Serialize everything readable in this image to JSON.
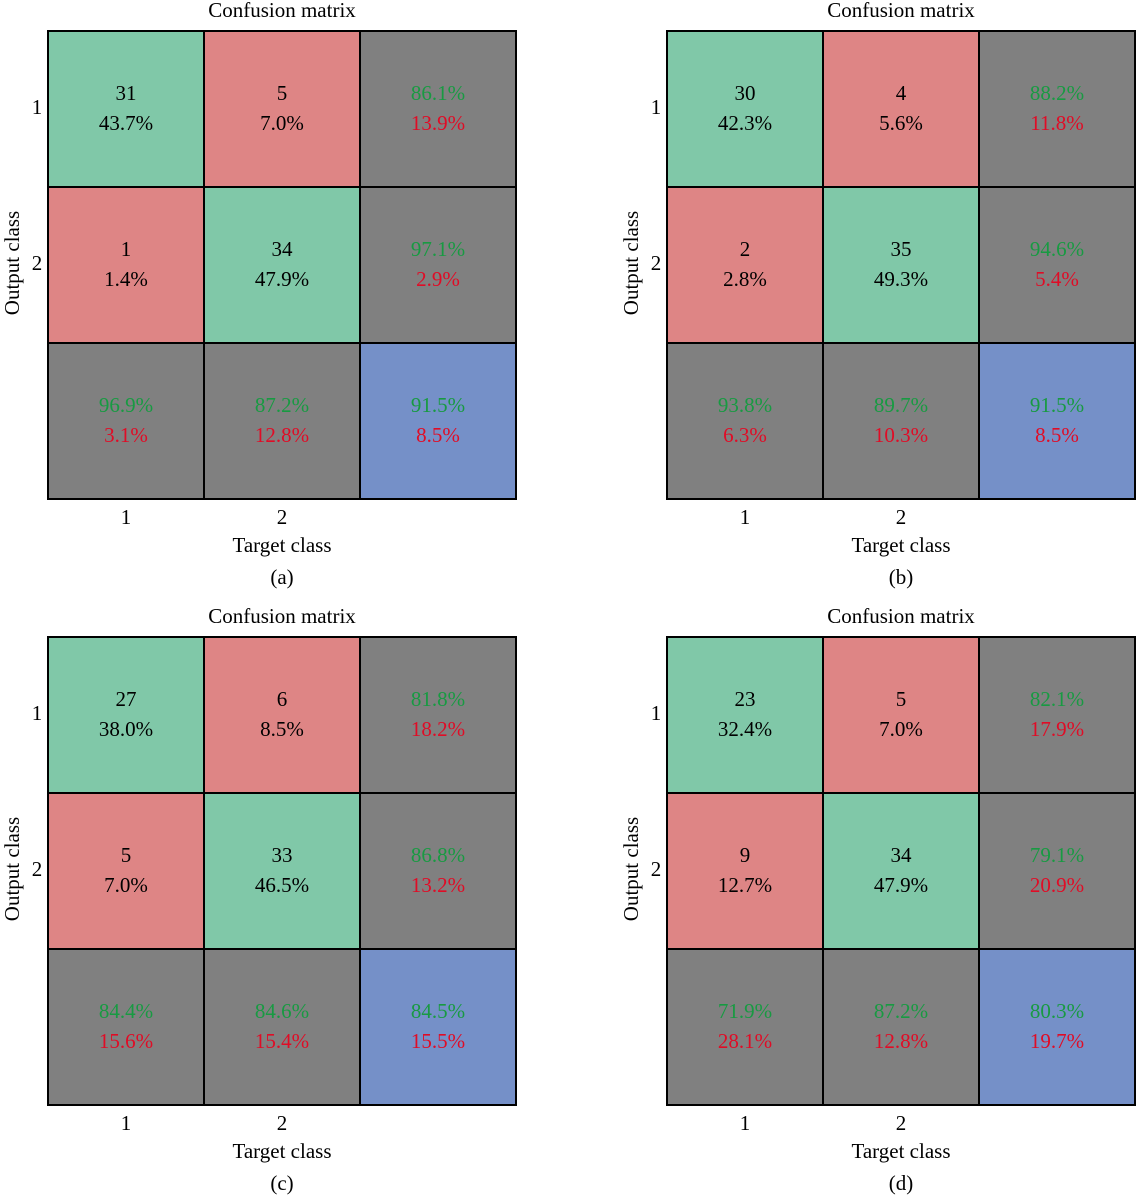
{
  "colors": {
    "correct_cell": "#80c8a8",
    "wrong_cell": "#de8585",
    "summary_cell": "#808080",
    "overall_cell": "#7590c8",
    "green_text": "#189a42",
    "red_text": "#e00c26",
    "black_text": "#000000",
    "grid_line": "#000000"
  },
  "chart_data": [
    {
      "type": "heatmap",
      "title": "Confusion matrix",
      "xlabel": "Target class",
      "ylabel": "Output class",
      "x_ticks": [
        "1",
        "2"
      ],
      "y_ticks": [
        "1",
        "2"
      ],
      "caption": "(a)",
      "counts": [
        [
          31,
          5
        ],
        [
          1,
          34
        ]
      ],
      "cell_percent": [
        [
          "43.7%",
          "7.0%"
        ],
        [
          "1.4%",
          "47.9%"
        ]
      ],
      "row_summary": [
        [
          "86.1%",
          "13.9%"
        ],
        [
          "97.1%",
          "2.9%"
        ]
      ],
      "col_summary": [
        [
          "96.9%",
          "3.1%"
        ],
        [
          "87.2%",
          "12.8%"
        ]
      ],
      "overall": [
        "91.5%",
        "8.5%"
      ]
    },
    {
      "type": "heatmap",
      "title": "Confusion matrix",
      "xlabel": "Target class",
      "ylabel": "Output class",
      "x_ticks": [
        "1",
        "2"
      ],
      "y_ticks": [
        "1",
        "2"
      ],
      "caption": "(b)",
      "counts": [
        [
          30,
          4
        ],
        [
          2,
          35
        ]
      ],
      "cell_percent": [
        [
          "42.3%",
          "5.6%"
        ],
        [
          "2.8%",
          "49.3%"
        ]
      ],
      "row_summary": [
        [
          "88.2%",
          "11.8%"
        ],
        [
          "94.6%",
          "5.4%"
        ]
      ],
      "col_summary": [
        [
          "93.8%",
          "6.3%"
        ],
        [
          "89.7%",
          "10.3%"
        ]
      ],
      "overall": [
        "91.5%",
        "8.5%"
      ]
    },
    {
      "type": "heatmap",
      "title": "Confusion matrix",
      "xlabel": "Target class",
      "ylabel": "Output class",
      "x_ticks": [
        "1",
        "2"
      ],
      "y_ticks": [
        "1",
        "2"
      ],
      "caption": "(c)",
      "counts": [
        [
          27,
          6
        ],
        [
          5,
          33
        ]
      ],
      "cell_percent": [
        [
          "38.0%",
          "8.5%"
        ],
        [
          "7.0%",
          "46.5%"
        ]
      ],
      "row_summary": [
        [
          "81.8%",
          "18.2%"
        ],
        [
          "86.8%",
          "13.2%"
        ]
      ],
      "col_summary": [
        [
          "84.4%",
          "15.6%"
        ],
        [
          "84.6%",
          "15.4%"
        ]
      ],
      "overall": [
        "84.5%",
        "15.5%"
      ]
    },
    {
      "type": "heatmap",
      "title": "Confusion matrix",
      "xlabel": "Target class",
      "ylabel": "Output class",
      "x_ticks": [
        "1",
        "2"
      ],
      "y_ticks": [
        "1",
        "2"
      ],
      "caption": "(d)",
      "counts": [
        [
          23,
          5
        ],
        [
          9,
          34
        ]
      ],
      "cell_percent": [
        [
          "32.4%",
          "7.0%"
        ],
        [
          "12.7%",
          "47.9%"
        ]
      ],
      "row_summary": [
        [
          "82.1%",
          "17.9%"
        ],
        [
          "79.1%",
          "20.9%"
        ]
      ],
      "col_summary": [
        [
          "71.9%",
          "28.1%"
        ],
        [
          "87.2%",
          "12.8%"
        ]
      ],
      "overall": [
        "80.3%",
        "19.7%"
      ]
    }
  ]
}
